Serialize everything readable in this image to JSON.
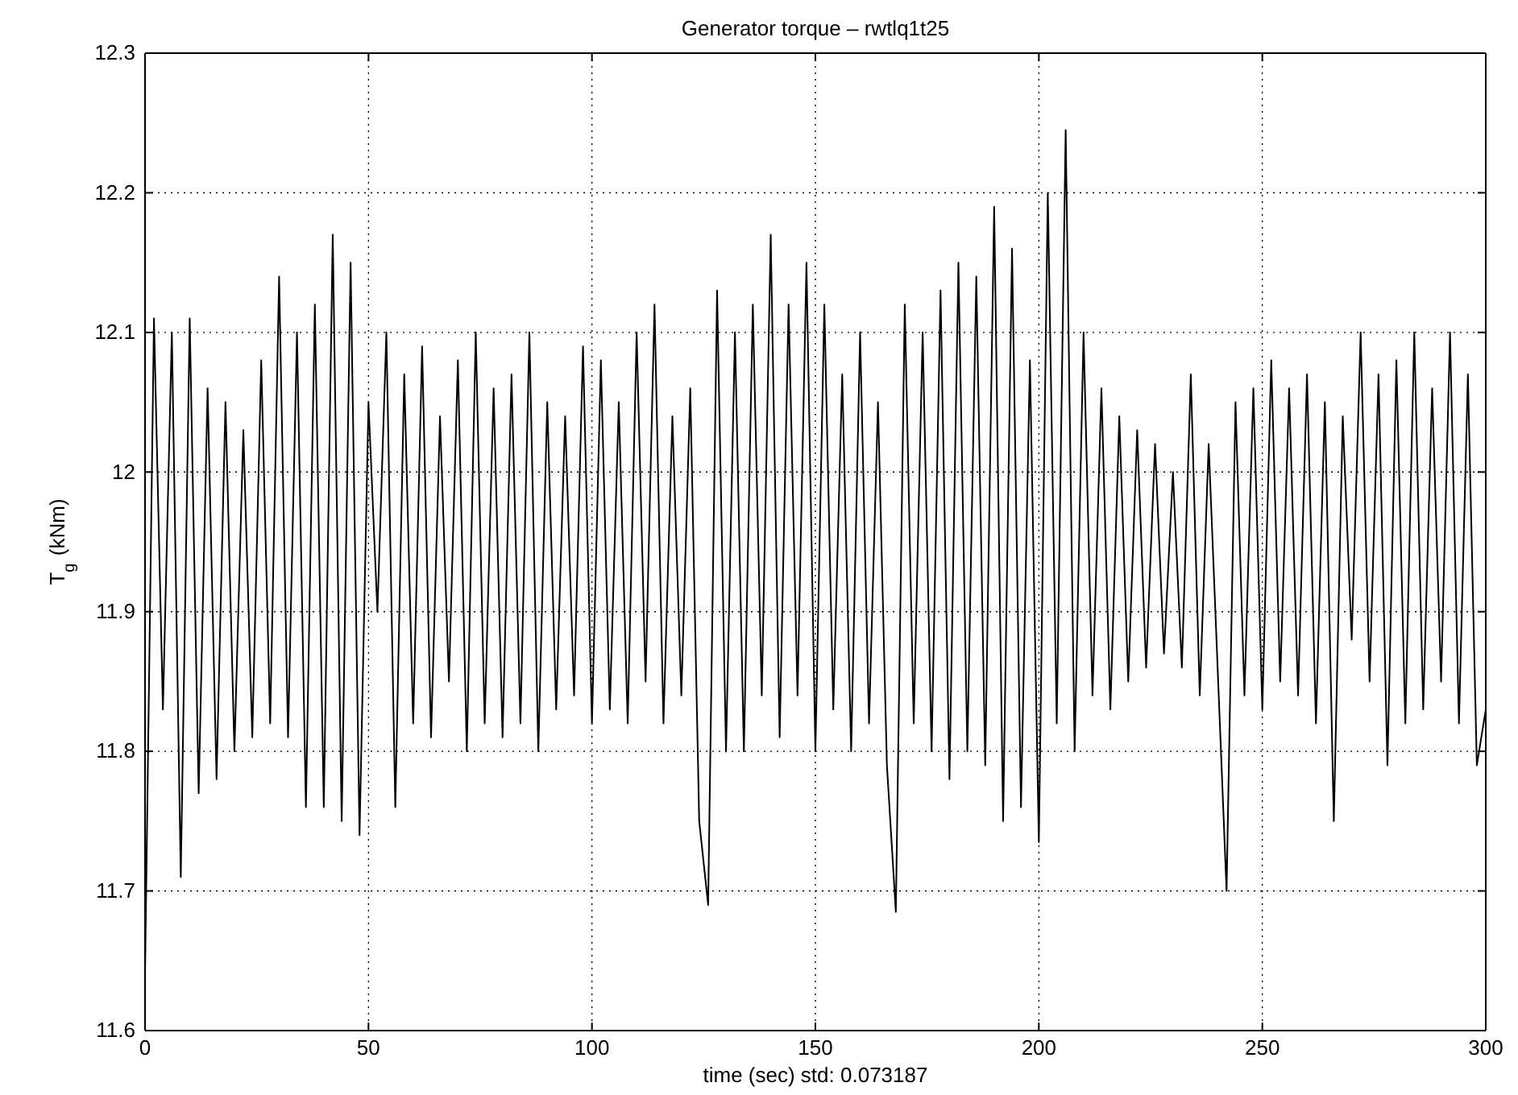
{
  "chart_data": {
    "type": "line",
    "title": "Generator torque – rwtlq1t25",
    "xlabel": "time (sec)   std: 0.073187",
    "ylabel": "T$_{g}$ (kNm)",
    "x": [
      0,
      2,
      4,
      6,
      8,
      10,
      12,
      14,
      16,
      18,
      20,
      22,
      24,
      26,
      28,
      30,
      32,
      34,
      36,
      38,
      40,
      42,
      44,
      46,
      48,
      50,
      52,
      54,
      56,
      58,
      60,
      62,
      64,
      66,
      68,
      70,
      72,
      74,
      76,
      78,
      80,
      82,
      84,
      86,
      88,
      90,
      92,
      94,
      96,
      98,
      100,
      102,
      104,
      106,
      108,
      110,
      112,
      114,
      116,
      118,
      120,
      122,
      124,
      126,
      128,
      130,
      132,
      134,
      136,
      138,
      140,
      142,
      144,
      146,
      148,
      150,
      152,
      154,
      156,
      158,
      160,
      162,
      164,
      166,
      168,
      170,
      172,
      174,
      176,
      178,
      180,
      182,
      184,
      186,
      188,
      190,
      192,
      194,
      196,
      198,
      200,
      202,
      204,
      206,
      208,
      210,
      212,
      214,
      216,
      218,
      220,
      222,
      224,
      226,
      228,
      230,
      232,
      234,
      236,
      238,
      240,
      242,
      244,
      246,
      248,
      250,
      252,
      254,
      256,
      258,
      260,
      262,
      264,
      266,
      268,
      270,
      272,
      274,
      276,
      278,
      280,
      282,
      284,
      286,
      288,
      290,
      292,
      294,
      296,
      298,
      300
    ],
    "series": [
      {
        "color": "#000000",
        "values": [
          11.64,
          12.11,
          11.83,
          12.1,
          11.71,
          12.11,
          11.77,
          12.06,
          11.78,
          12.05,
          11.8,
          12.03,
          11.81,
          12.08,
          11.82,
          12.14,
          11.81,
          12.1,
          11.76,
          12.12,
          11.76,
          12.17,
          11.75,
          12.15,
          11.74,
          12.05,
          11.9,
          12.1,
          11.76,
          12.07,
          11.82,
          12.09,
          11.81,
          12.04,
          11.85,
          12.08,
          11.8,
          12.1,
          11.82,
          12.06,
          11.81,
          12.07,
          11.82,
          12.1,
          11.8,
          12.05,
          11.83,
          12.04,
          11.84,
          12.09,
          11.82,
          12.08,
          11.83,
          12.05,
          11.82,
          12.1,
          11.85,
          12.12,
          11.82,
          12.04,
          11.84,
          12.06,
          11.75,
          11.69,
          12.13,
          11.8,
          12.1,
          11.8,
          12.12,
          11.84,
          12.17,
          11.81,
          12.12,
          11.84,
          12.15,
          11.8,
          12.12,
          11.83,
          12.07,
          11.8,
          12.1,
          11.82,
          12.05,
          11.79,
          11.685,
          12.12,
          11.82,
          12.1,
          11.8,
          12.13,
          11.78,
          12.15,
          11.8,
          12.14,
          11.79,
          12.19,
          11.75,
          12.16,
          11.76,
          12.08,
          11.735,
          12.2,
          11.82,
          12.245,
          11.8,
          12.1,
          11.84,
          12.06,
          11.83,
          12.04,
          11.85,
          12.03,
          11.86,
          12.02,
          11.87,
          12.0,
          11.86,
          12.07,
          11.84,
          12.02,
          11.86,
          11.7,
          12.05,
          11.84,
          12.06,
          11.83,
          12.08,
          11.85,
          12.06,
          11.84,
          12.07,
          11.82,
          12.05,
          11.75,
          12.04,
          11.88,
          12.1,
          11.85,
          12.07,
          11.79,
          12.08,
          11.82,
          12.1,
          11.83,
          12.06,
          11.85,
          12.1,
          11.82,
          12.07,
          11.79,
          11.83
        ]
      }
    ],
    "xlim": [
      0,
      300
    ],
    "xticks": [
      0,
      50,
      100,
      150,
      200,
      250,
      300
    ],
    "ylim": [
      11.6,
      12.3
    ],
    "yticks": [
      11.6,
      11.7,
      11.8,
      11.9,
      12,
      12.1,
      12.2,
      12.3
    ],
    "grid": true
  }
}
